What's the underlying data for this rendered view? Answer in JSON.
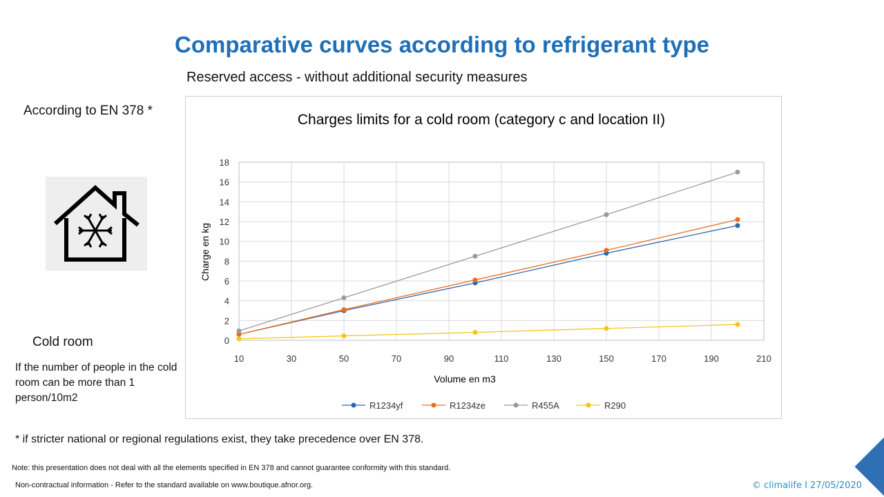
{
  "title": "Comparative curves according to refrigerant type",
  "subtitle": "Reserved access - without additional security measures",
  "according": "According to EN 378 *",
  "icon": "cold-room-house-snowflake-icon",
  "cold_room_label": "Cold room",
  "condition": "If the number of people in the cold room can be more than 1 person/10m2",
  "footnote": "* if stricter national or regional regulations exist, they take precedence over EN 378.",
  "note1": "Note: this presentation does not deal with all the elements specified in EN 378 and cannot guarantee conformity with this standard.",
  "note2": "Non-contractual information - Refer to the standard available on www.boutique.afnor.org.",
  "copyright": "© climalife  I 27/05/2020",
  "chart_data": {
    "type": "line",
    "title": "Charges limits for a cold room (category c and location II)",
    "xlabel": "Volume en m3",
    "ylabel": "Charge en kg",
    "xlim": [
      10,
      210
    ],
    "ylim": [
      0,
      18
    ],
    "xticks": [
      10,
      30,
      50,
      70,
      90,
      110,
      130,
      150,
      170,
      190,
      210
    ],
    "yticks": [
      0,
      2,
      4,
      6,
      8,
      10,
      12,
      14,
      16,
      18
    ],
    "grid": true,
    "legend": "bottom",
    "x": [
      10,
      50,
      100,
      150,
      200
    ],
    "series": [
      {
        "name": "R1234yf",
        "color": "#2e64b0",
        "values": [
          0.6,
          3.0,
          5.8,
          8.8,
          11.6
        ]
      },
      {
        "name": "R1234ze",
        "color": "#ed6d1e",
        "values": [
          0.6,
          3.1,
          6.1,
          9.1,
          12.2
        ]
      },
      {
        "name": "R455A",
        "color": "#9a9a9a",
        "values": [
          0.95,
          4.3,
          8.5,
          12.7,
          17.0
        ]
      },
      {
        "name": "R290",
        "color": "#f5c518",
        "values": [
          0.15,
          0.45,
          0.8,
          1.2,
          1.6
        ]
      }
    ]
  }
}
